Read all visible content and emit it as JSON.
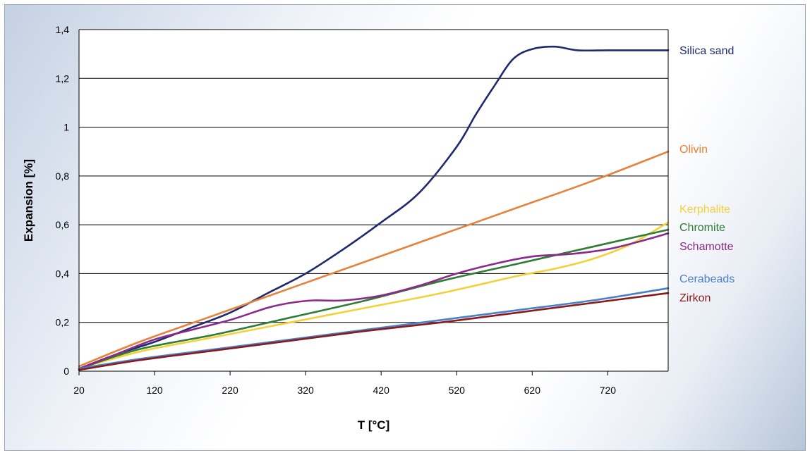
{
  "chart_data": {
    "type": "line",
    "xlabel": "T [°C]",
    "ylabel": "Expansion [%]",
    "xlim": [
      20,
      800
    ],
    "ylim": [
      0,
      1.4
    ],
    "x_ticks": [
      "20",
      "120",
      "220",
      "320",
      "420",
      "520",
      "620",
      "720"
    ],
    "x_tick_values": [
      20,
      120,
      220,
      320,
      420,
      520,
      620,
      720
    ],
    "y_ticks": [
      "0",
      "0,2",
      "0,4",
      "0,6",
      "0,8",
      "1",
      "1,2",
      "1,4"
    ],
    "y_tick_values": [
      0,
      0.2,
      0.4,
      0.6,
      0.8,
      1.0,
      1.2,
      1.4
    ],
    "grid": "horizontal",
    "legend": "labels at right end of lines",
    "series": [
      {
        "name": "Silica sand",
        "color": "#1f2a6e",
        "x": [
          20,
          70,
          120,
          170,
          220,
          270,
          320,
          370,
          420,
          470,
          520,
          545,
          570,
          595,
          620,
          650,
          680,
          720,
          760,
          800
        ],
        "y": [
          0.01,
          0.07,
          0.12,
          0.18,
          0.24,
          0.32,
          0.4,
          0.5,
          0.61,
          0.73,
          0.92,
          1.05,
          1.17,
          1.28,
          1.32,
          1.33,
          1.315,
          1.315,
          1.315,
          1.315
        ]
      },
      {
        "name": "Olivin",
        "color": "#e8813a",
        "x": [
          20,
          100,
          200,
          300,
          400,
          500,
          600,
          700,
          800
        ],
        "y": [
          0.02,
          0.12,
          0.23,
          0.34,
          0.45,
          0.56,
          0.67,
          0.78,
          0.9
        ]
      },
      {
        "name": "Kerphalite",
        "color": "#f2d23a",
        "x": [
          20,
          100,
          200,
          300,
          400,
          500,
          600,
          650,
          700,
          750,
          800
        ],
        "y": [
          0.01,
          0.08,
          0.14,
          0.2,
          0.26,
          0.32,
          0.39,
          0.42,
          0.46,
          0.52,
          0.61
        ]
      },
      {
        "name": "Chromite",
        "color": "#2e7d32",
        "x": [
          20,
          100,
          200,
          300,
          400,
          500,
          600,
          700,
          800
        ],
        "y": [
          0.01,
          0.09,
          0.15,
          0.22,
          0.29,
          0.37,
          0.44,
          0.51,
          0.58
        ]
      },
      {
        "name": "Schamotte",
        "color": "#8b2a8b",
        "x": [
          20,
          70,
          120,
          170,
          220,
          270,
          300,
          330,
          370,
          420,
          470,
          520,
          570,
          620,
          670,
          720,
          760,
          800
        ],
        "y": [
          0.01,
          0.07,
          0.13,
          0.17,
          0.21,
          0.26,
          0.28,
          0.29,
          0.29,
          0.31,
          0.35,
          0.4,
          0.44,
          0.47,
          0.48,
          0.5,
          0.53,
          0.565
        ]
      },
      {
        "name": "Cerabeads",
        "color": "#4a7fc9",
        "x": [
          20,
          100,
          200,
          300,
          400,
          500,
          600,
          700,
          800
        ],
        "y": [
          0.01,
          0.05,
          0.09,
          0.13,
          0.17,
          0.21,
          0.25,
          0.29,
          0.34
        ]
      },
      {
        "name": "Zirkon",
        "color": "#8b1a1a",
        "x": [
          20,
          100,
          200,
          300,
          400,
          500,
          600,
          700,
          800
        ],
        "y": [
          0.005,
          0.045,
          0.085,
          0.125,
          0.165,
          0.2,
          0.24,
          0.28,
          0.32
        ]
      }
    ]
  }
}
